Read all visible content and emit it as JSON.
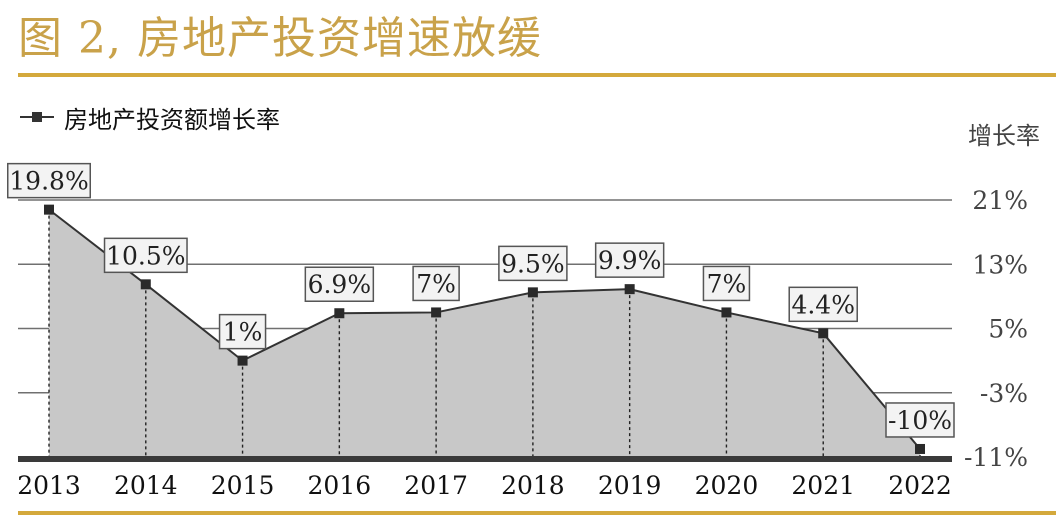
{
  "title": "图 2, 房地产投资增速放缓",
  "legend": {
    "label": "房地产投资额增长率"
  },
  "y_unit": "增长率",
  "colors": {
    "title": "#c9a24a",
    "rule": "#d4a93c",
    "area": "#c8c8c8",
    "line": "#333333",
    "axis": "#3a3a3a"
  },
  "chart_data": {
    "type": "area",
    "categories": [
      "2013",
      "2014",
      "2015",
      "2016",
      "2017",
      "2018",
      "2019",
      "2020",
      "2021",
      "2022"
    ],
    "series": [
      {
        "name": "房地产投资额增长率",
        "values": [
          19.8,
          10.5,
          1,
          6.9,
          7,
          9.5,
          9.9,
          7,
          4.4,
          -10
        ],
        "labels": [
          "19.8%",
          "10.5%",
          "1%",
          "6.9%",
          "7%",
          "9.5%",
          "9.9%",
          "7%",
          "4.4%",
          "-10%"
        ]
      }
    ],
    "y_ticks": [
      21,
      13,
      5,
      -3,
      -11
    ],
    "y_tick_labels": [
      "21%",
      "13%",
      "5%",
      "-3%",
      "-11%"
    ],
    "ylim": [
      -11,
      21
    ],
    "y_axis_side": "right",
    "grid": true,
    "legend_position": "top-left"
  }
}
